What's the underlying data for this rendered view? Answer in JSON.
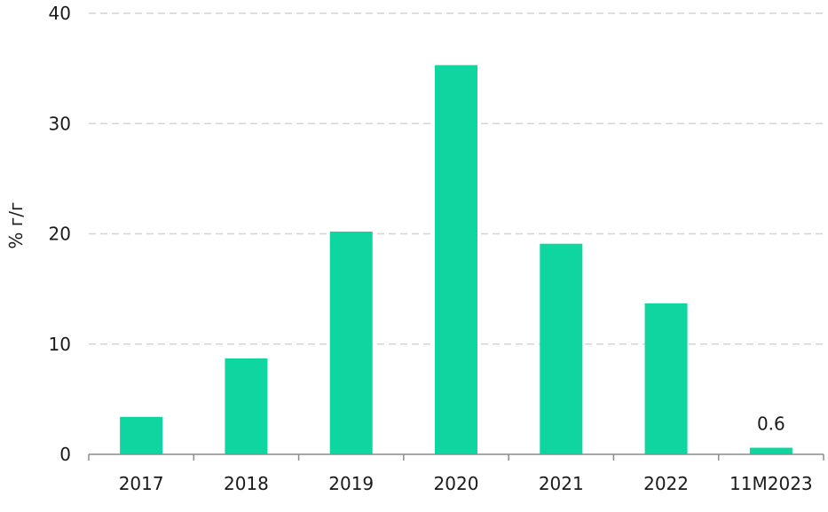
{
  "chart_data": {
    "type": "bar",
    "categories": [
      "2017",
      "2018",
      "2019",
      "2020",
      "2021",
      "2022",
      "11M2023"
    ],
    "values": [
      3.4,
      8.7,
      20.2,
      35.3,
      19.1,
      13.7,
      0.6
    ],
    "data_labels": [
      {
        "category": "11M2023",
        "text": "0.6"
      }
    ],
    "ylabel": "% г/г",
    "ylim": [
      0,
      40
    ],
    "yticks": [
      "0",
      "10",
      "20",
      "30",
      "40"
    ],
    "grid": true,
    "bar_color": "#0fd6a0",
    "grid_color": "#d4d4d4"
  }
}
